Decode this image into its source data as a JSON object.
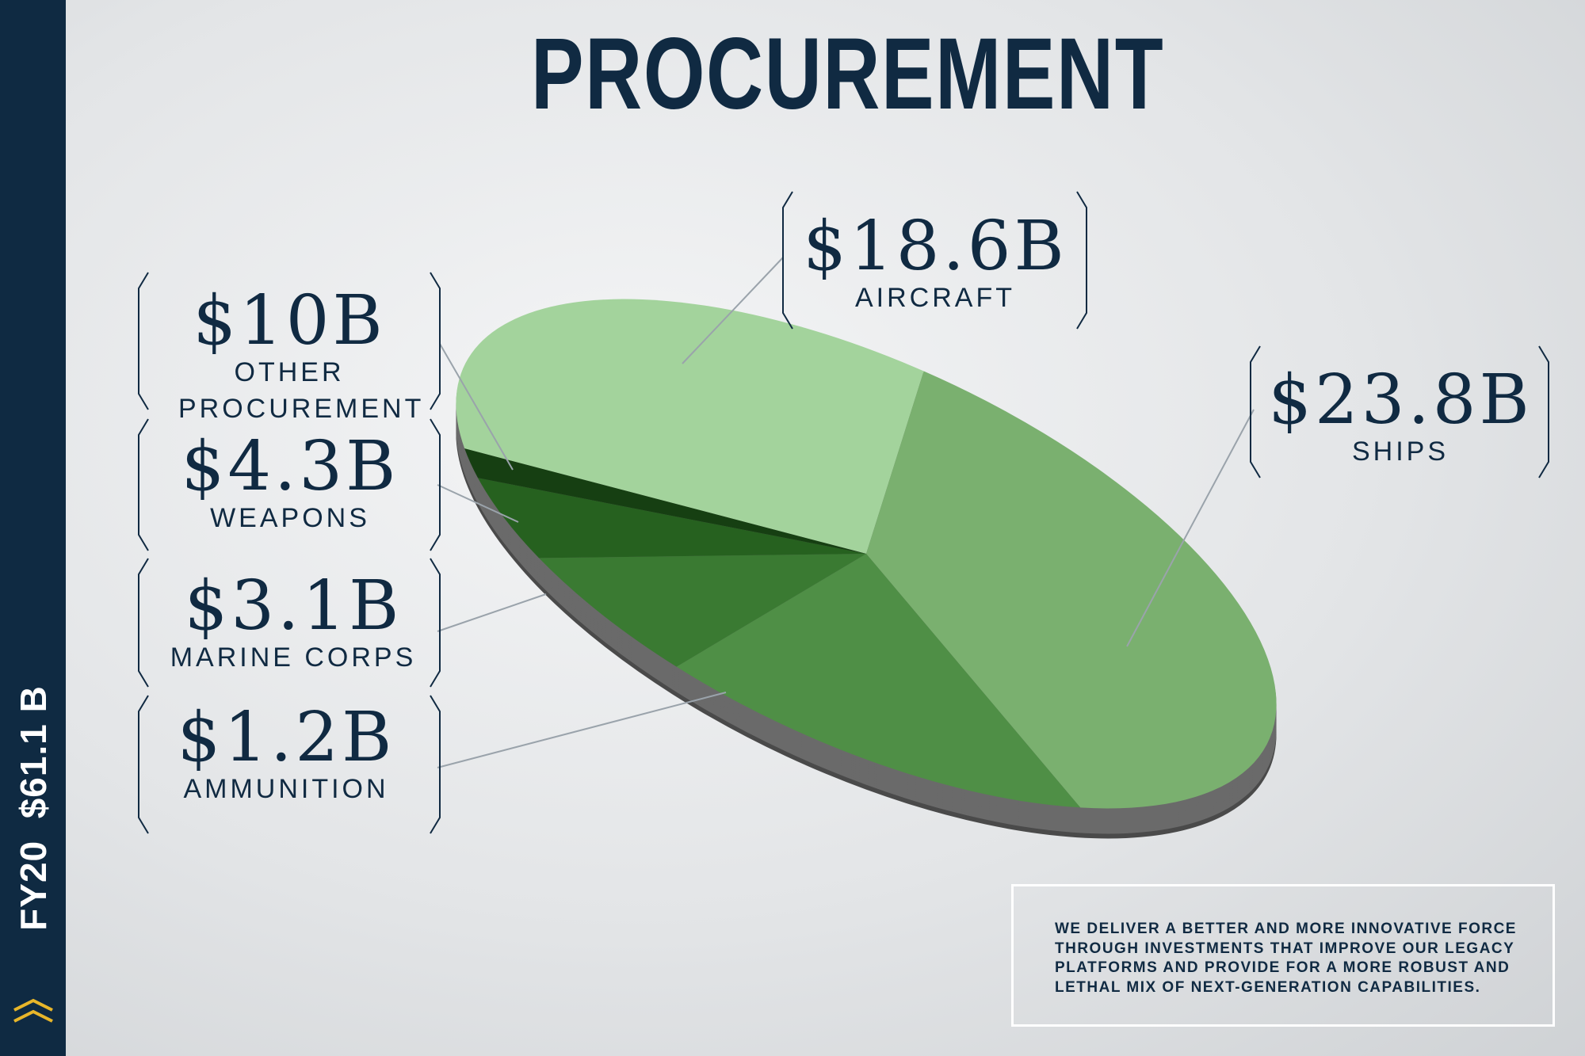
{
  "chart_data": {
    "type": "pie",
    "title": "PROCUREMENT",
    "categories": [
      "AIRCRAFT",
      "SHIPS",
      "OTHER PROCUREMENT",
      "WEAPONS",
      "MARINE CORPS",
      "AMMUNITION"
    ],
    "values": [
      18.6,
      23.8,
      10,
      4.3,
      3.1,
      1.2
    ],
    "value_labels": [
      "$18.6B",
      "$23.8B",
      "$10B",
      "$4.3B",
      "$3.1B",
      "$1.2B"
    ],
    "colors": [
      "#a3d39c",
      "#7ab06f",
      "#4f8f46",
      "#3a7a32",
      "#26611f",
      "#163f12"
    ]
  },
  "sidebar": {
    "fiscal_year": "FY20",
    "total": "$61.1 B"
  },
  "note": "WE DELIVER A BETTER AND MORE INNOVATIVE FORCE THROUGH INVESTMENTS THAT IMPROVE OUR LEGACY PLATFORMS AND PROVIDE FOR A MORE ROBUST AND LETHAL MIX OF NEXT-GENERATION CAPABILITIES."
}
